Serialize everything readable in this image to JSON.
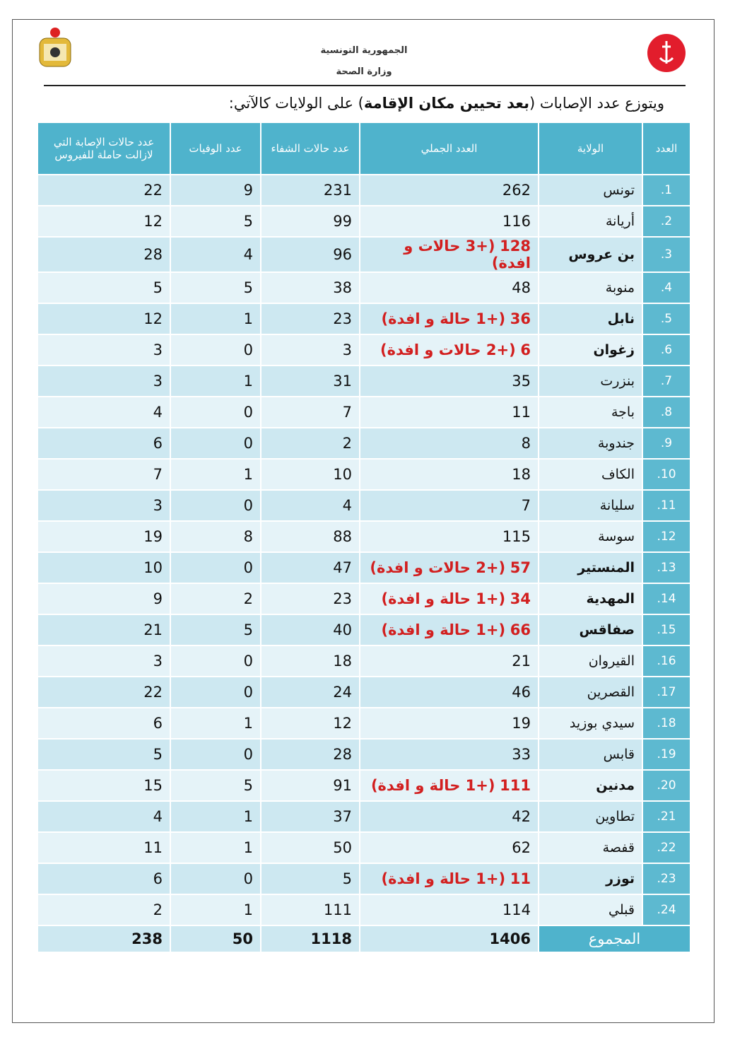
{
  "header": {
    "republic": "الجمهورية التونسية",
    "ministry": "وزارة الصحة"
  },
  "intro": {
    "before": "ويتوزع عدد الإصابات (",
    "bold": "بعد تحيين مكان الإقامة",
    "after": ") على الولايات كالآتي:"
  },
  "table": {
    "columns": [
      "العدد",
      "الولاية",
      "العدد الجملي",
      "عدد حالات الشفاء",
      "عدد الوفيات",
      "عدد حالات الإصابة التي لازالت حاملة للفيروس"
    ],
    "rows": [
      {
        "no": "1.",
        "name": "تونس",
        "total": 262,
        "recovered": 231,
        "deaths": 9,
        "active": 22
      },
      {
        "no": "2.",
        "name": "أريانة",
        "total": 116,
        "recovered": 99,
        "deaths": 5,
        "active": 12
      },
      {
        "no": "3.",
        "name": "بن عروس",
        "total": 128,
        "note": "(+3 حالات و افدة)",
        "recovered": 96,
        "deaths": 4,
        "active": 28
      },
      {
        "no": "4.",
        "name": "منوبة",
        "total": 48,
        "recovered": 38,
        "deaths": 5,
        "active": 5
      },
      {
        "no": "5.",
        "name": "نابل",
        "total": 36,
        "note": "(+1 حالة و افدة)",
        "recovered": 23,
        "deaths": 1,
        "active": 12
      },
      {
        "no": "6.",
        "name": "زغوان",
        "total": 6,
        "note": "(+2 حالات و افدة)",
        "recovered": 3,
        "deaths": 0,
        "active": 3
      },
      {
        "no": "7.",
        "name": "بنزرت",
        "total": 35,
        "recovered": 31,
        "deaths": 1,
        "active": 3
      },
      {
        "no": "8.",
        "name": "باجة",
        "total": 11,
        "recovered": 7,
        "deaths": 0,
        "active": 4
      },
      {
        "no": "9.",
        "name": "جندوبة",
        "total": 8,
        "recovered": 2,
        "deaths": 0,
        "active": 6
      },
      {
        "no": "10.",
        "name": "الكاف",
        "total": 18,
        "recovered": 10,
        "deaths": 1,
        "active": 7
      },
      {
        "no": "11.",
        "name": "سليانة",
        "total": 7,
        "recovered": 4,
        "deaths": 0,
        "active": 3
      },
      {
        "no": "12.",
        "name": "سوسة",
        "total": 115,
        "recovered": 88,
        "deaths": 8,
        "active": 19
      },
      {
        "no": "13.",
        "name": "المنستير",
        "total": 57,
        "note": "(+2 حالات و افدة)",
        "recovered": 47,
        "deaths": 0,
        "active": 10
      },
      {
        "no": "14.",
        "name": "المهدية",
        "total": 34,
        "note": "(+1 حالة و افدة)",
        "recovered": 23,
        "deaths": 2,
        "active": 9
      },
      {
        "no": "15.",
        "name": "صفاقس",
        "total": 66,
        "note": "(+1 حالة و افدة)",
        "recovered": 40,
        "deaths": 5,
        "active": 21
      },
      {
        "no": "16.",
        "name": "القيروان",
        "total": 21,
        "recovered": 18,
        "deaths": 0,
        "active": 3
      },
      {
        "no": "17.",
        "name": "القصرين",
        "total": 46,
        "recovered": 24,
        "deaths": 0,
        "active": 22
      },
      {
        "no": "18.",
        "name": "سيدي بوزيد",
        "total": 19,
        "recovered": 12,
        "deaths": 1,
        "active": 6
      },
      {
        "no": "19.",
        "name": "قابس",
        "total": 33,
        "recovered": 28,
        "deaths": 0,
        "active": 5
      },
      {
        "no": "20.",
        "name": "مدنين",
        "total": 111,
        "note": "(+1 حالة و افدة)",
        "recovered": 91,
        "deaths": 5,
        "active": 15
      },
      {
        "no": "21.",
        "name": "تطاوين",
        "total": 42,
        "recovered": 37,
        "deaths": 1,
        "active": 4
      },
      {
        "no": "22.",
        "name": "قفصة",
        "total": 62,
        "recovered": 50,
        "deaths": 1,
        "active": 11
      },
      {
        "no": "23.",
        "name": "توزر",
        "total": 11,
        "note": "(+1 حالة و افدة)",
        "recovered": 5,
        "deaths": 0,
        "active": 6
      },
      {
        "no": "24.",
        "name": "قبلي",
        "total": 114,
        "recovered": 111,
        "deaths": 1,
        "active": 2
      }
    ],
    "sum": {
      "label": "المجموع",
      "total": 1406,
      "recovered": 1118,
      "deaths": 50,
      "active": 238
    }
  }
}
